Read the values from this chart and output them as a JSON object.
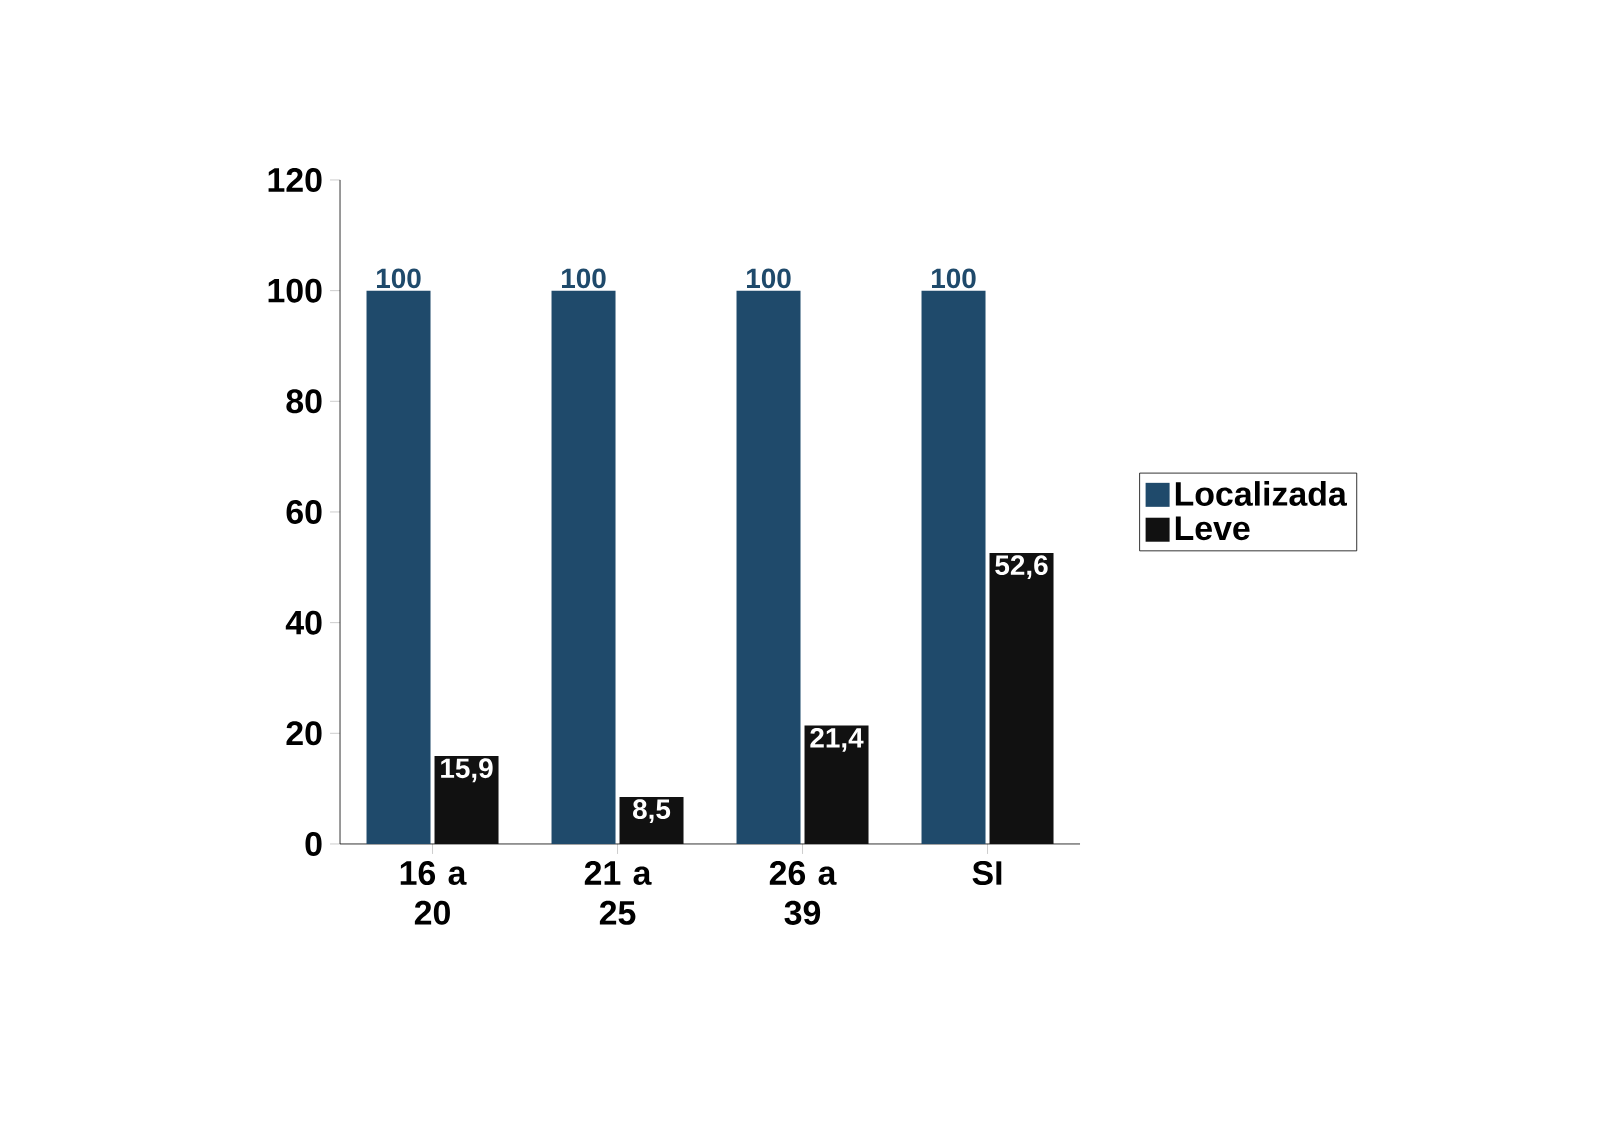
{
  "chart_data": {
    "type": "bar",
    "categories": [
      "16 a 20",
      "21 a 25",
      "26 a 39",
      "SI"
    ],
    "series": [
      {
        "name": "Localizada",
        "color": "#1f4a6b",
        "values": [
          100,
          100,
          100,
          100
        ],
        "value_labels": [
          "100",
          "100",
          "100",
          "100"
        ]
      },
      {
        "name": "Leve",
        "color": "#111111",
        "values": [
          15.9,
          8.5,
          21.4,
          52.6
        ],
        "value_labels": [
          "15,9",
          "8,5",
          "21,4",
          "52,6"
        ]
      }
    ],
    "ylim": [
      0,
      120
    ],
    "yticks": [
      0,
      20,
      40,
      60,
      80,
      100,
      120
    ],
    "legend": "right"
  }
}
